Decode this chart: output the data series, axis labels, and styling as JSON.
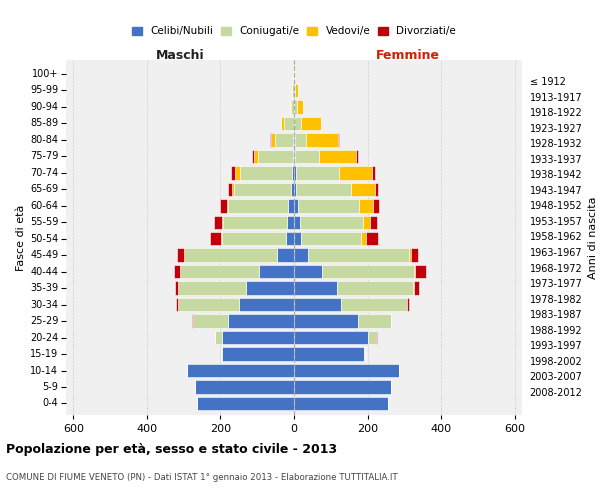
{
  "age_groups": [
    "0-4",
    "5-9",
    "10-14",
    "15-19",
    "20-24",
    "25-29",
    "30-34",
    "35-39",
    "40-44",
    "45-49",
    "50-54",
    "55-59",
    "60-64",
    "65-69",
    "70-74",
    "75-79",
    "80-84",
    "85-89",
    "90-94",
    "95-99",
    "100+"
  ],
  "birth_years": [
    "2008-2012",
    "2003-2007",
    "1998-2002",
    "1993-1997",
    "1988-1992",
    "1983-1987",
    "1978-1982",
    "1973-1977",
    "1968-1972",
    "1963-1967",
    "1958-1962",
    "1953-1957",
    "1948-1952",
    "1943-1947",
    "1938-1942",
    "1933-1937",
    "1928-1932",
    "1923-1927",
    "1918-1922",
    "1913-1917",
    "≤ 1912"
  ],
  "male": {
    "celibi": [
      265,
      270,
      290,
      195,
      195,
      180,
      150,
      130,
      95,
      45,
      22,
      18,
      15,
      8,
      6,
      4,
      2,
      1,
      1,
      1,
      0
    ],
    "coniugati": [
      0,
      0,
      0,
      4,
      20,
      95,
      165,
      185,
      215,
      255,
      175,
      175,
      165,
      155,
      140,
      95,
      50,
      25,
      8,
      4,
      2
    ],
    "vedovi": [
      0,
      0,
      0,
      0,
      0,
      0,
      0,
      0,
      0,
      0,
      2,
      2,
      3,
      5,
      15,
      10,
      10,
      8,
      2,
      1,
      0
    ],
    "divorziati": [
      0,
      0,
      0,
      0,
      0,
      2,
      5,
      8,
      15,
      18,
      30,
      22,
      18,
      12,
      10,
      6,
      2,
      0,
      0,
      0,
      0
    ]
  },
  "female": {
    "nubili": [
      255,
      265,
      285,
      190,
      200,
      175,
      128,
      118,
      75,
      38,
      18,
      15,
      12,
      6,
      5,
      3,
      2,
      1,
      1,
      1,
      0
    ],
    "coniugate": [
      0,
      0,
      0,
      4,
      22,
      88,
      178,
      205,
      250,
      275,
      165,
      172,
      165,
      148,
      118,
      65,
      30,
      18,
      6,
      3,
      1
    ],
    "vedove": [
      0,
      0,
      0,
      0,
      0,
      0,
      0,
      2,
      3,
      5,
      14,
      20,
      38,
      65,
      88,
      100,
      88,
      55,
      18,
      7,
      3
    ],
    "divorziate": [
      0,
      0,
      0,
      0,
      3,
      2,
      8,
      15,
      30,
      18,
      32,
      20,
      15,
      10,
      8,
      6,
      2,
      0,
      0,
      0,
      0
    ]
  },
  "colors": {
    "celibi": "#4472c4",
    "coniugati": "#c5d9a0",
    "vedovi": "#ffc000",
    "divorziati": "#c0000b"
  },
  "xlim": 620,
  "title": "Popolazione per età, sesso e stato civile - 2013",
  "subtitle": "COMUNE DI FIUME VENETO (PN) - Dati ISTAT 1° gennaio 2013 - Elaborazione TUTTITALIA.IT",
  "maschi_label": "Maschi",
  "femmine_label": "Femmine",
  "ylabel_left": "Fasce di età",
  "ylabel_right": "Anni di nascita",
  "bg_color": "#ffffff",
  "plot_bg": "#f0f0f0"
}
